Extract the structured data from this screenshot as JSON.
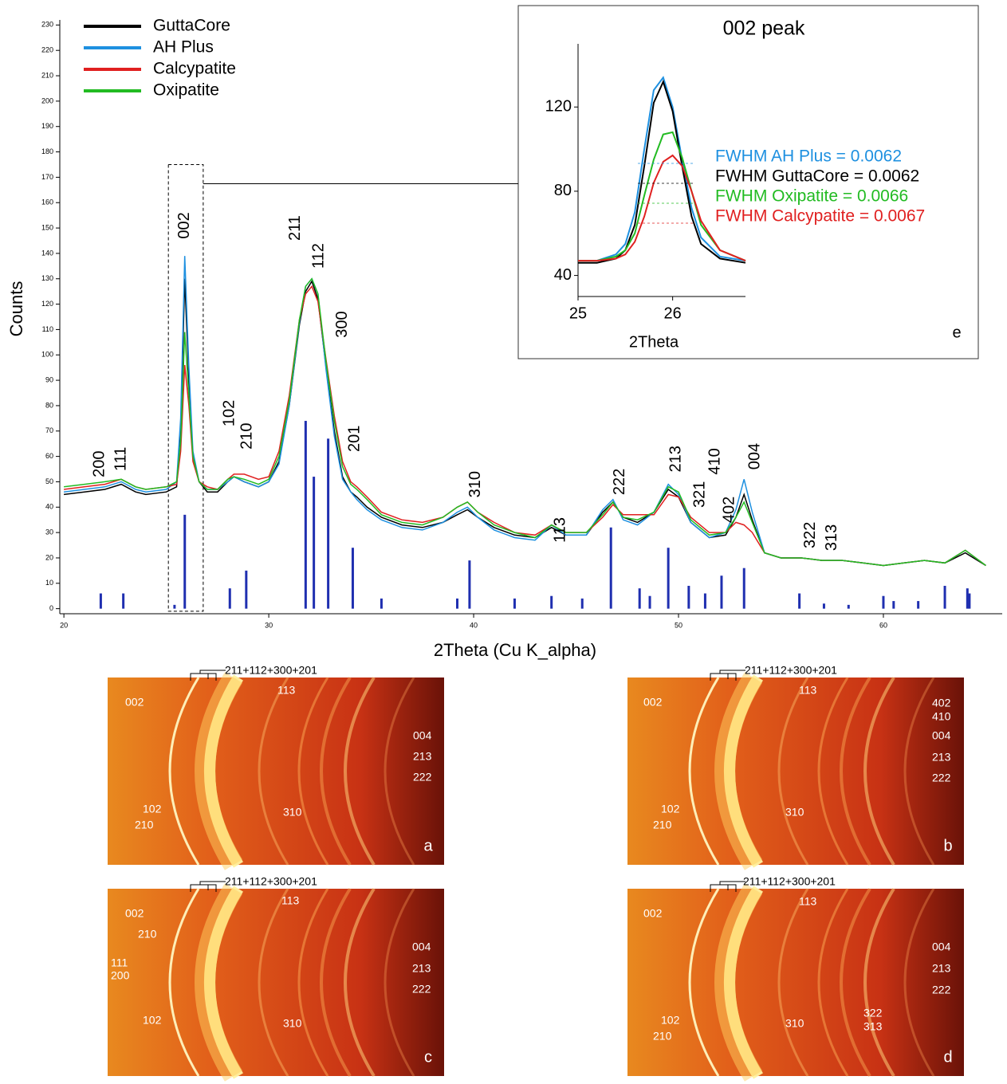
{
  "chart_data": [
    {
      "type": "line",
      "xlabel": "2Theta (Cu K_alpha)",
      "ylabel": "Counts",
      "xlim": [
        19.8,
        65.8
      ],
      "ylim": [
        -2,
        232
      ],
      "xticks": [
        20,
        30,
        40,
        50,
        60
      ],
      "yticks": [
        0,
        10,
        20,
        30,
        40,
        50,
        60,
        70,
        80,
        90,
        100,
        110,
        120,
        130,
        140,
        150,
        160,
        170,
        180,
        190,
        200,
        210,
        220,
        230
      ],
      "legend": "upper left",
      "x": [
        20,
        21,
        22,
        22.8,
        23.5,
        24,
        25,
        25.5,
        25.7,
        25.9,
        26.1,
        26.3,
        26.6,
        27,
        27.5,
        28,
        28.3,
        28.8,
        29.5,
        30,
        30.5,
        31,
        31.5,
        31.8,
        32.1,
        32.4,
        32.8,
        33.2,
        33.6,
        34,
        34.3,
        34.8,
        35.5,
        36.5,
        37.5,
        38.5,
        39.2,
        39.7,
        40.2,
        41,
        42,
        43,
        43.8,
        44.5,
        45.5,
        46.3,
        46.8,
        47.3,
        48,
        48.8,
        49.5,
        50,
        50.6,
        51.5,
        52.3,
        52.8,
        53.2,
        53.6,
        54.2,
        55,
        56,
        57,
        58,
        59,
        60,
        61,
        62,
        63,
        64,
        65
      ],
      "series": [
        {
          "name": "GuttaCore",
          "color": "#000000",
          "values": [
            45,
            46,
            47,
            49,
            46,
            45,
            46,
            48,
            70,
            130,
            90,
            60,
            50,
            46,
            46,
            50,
            52,
            50,
            48,
            50,
            58,
            80,
            112,
            125,
            129,
            122,
            95,
            70,
            52,
            46,
            44,
            40,
            36,
            33,
            32,
            34,
            37,
            39,
            36,
            32,
            29,
            28,
            32,
            29,
            29,
            38,
            42,
            36,
            34,
            38,
            47,
            44,
            34,
            28,
            29,
            36,
            45,
            35,
            22,
            20,
            20,
            19,
            19,
            18,
            17,
            18,
            19,
            18,
            22,
            17
          ]
        },
        {
          "name": "AH Plus",
          "color": "#1e90e0",
          "values": [
            46,
            47,
            48,
            50,
            47,
            46,
            47,
            50,
            75,
            139,
            95,
            62,
            50,
            47,
            47,
            50,
            52,
            50,
            48,
            50,
            57,
            80,
            113,
            127,
            130,
            124,
            94,
            68,
            51,
            46,
            43,
            39,
            35,
            32,
            31,
            34,
            38,
            40,
            36,
            31,
            28,
            27,
            33,
            29,
            29,
            39,
            43,
            35,
            33,
            38,
            49,
            45,
            34,
            28,
            30,
            39,
            51,
            38,
            22,
            20,
            20,
            19,
            19,
            18,
            17,
            18,
            19,
            18,
            23,
            17
          ]
        },
        {
          "name": "Calcypatite",
          "color": "#e02020",
          "values": [
            47,
            48,
            49,
            51,
            48,
            47,
            48,
            49,
            62,
            96,
            80,
            58,
            50,
            48,
            47,
            51,
            53,
            53,
            51,
            52,
            62,
            84,
            114,
            124,
            127,
            121,
            98,
            76,
            58,
            50,
            48,
            44,
            38,
            35,
            34,
            36,
            40,
            42,
            38,
            34,
            30,
            29,
            33,
            30,
            30,
            36,
            41,
            37,
            37,
            37,
            45,
            44,
            36,
            30,
            30,
            34,
            33,
            30,
            22,
            20,
            20,
            19,
            19,
            18,
            17,
            18,
            19,
            18,
            23,
            17
          ]
        },
        {
          "name": "Oxipatite",
          "color": "#22bb22",
          "values": [
            48,
            49,
            50,
            51,
            48,
            47,
            48,
            50,
            66,
            109,
            84,
            60,
            50,
            47,
            47,
            51,
            52,
            51,
            49,
            51,
            60,
            82,
            114,
            127,
            130,
            124,
            97,
            74,
            56,
            49,
            47,
            43,
            37,
            34,
            33,
            36,
            40,
            42,
            38,
            33,
            30,
            28,
            33,
            30,
            30,
            37,
            42,
            36,
            35,
            38,
            48,
            46,
            35,
            29,
            30,
            36,
            42,
            34,
            22,
            20,
            20,
            19,
            19,
            18,
            17,
            18,
            19,
            18,
            23,
            17
          ]
        }
      ],
      "reference_peaks": {
        "color": "#1f2fb0",
        "x": [
          21.8,
          22.9,
          25.4,
          25.9,
          28.1,
          28.9,
          31.8,
          32.2,
          32.9,
          34.1,
          35.5,
          39.2,
          39.8,
          42.0,
          43.8,
          45.3,
          46.7,
          48.1,
          48.6,
          49.5,
          50.5,
          51.3,
          52.1,
          53.2,
          55.9,
          57.1,
          58.3,
          60.0,
          60.5,
          61.7,
          63.0,
          64.1,
          64.2
        ],
        "values": [
          6,
          6,
          1.5,
          37,
          8,
          15,
          74,
          52,
          67,
          24,
          4,
          4,
          19,
          4,
          5,
          4,
          32,
          8,
          5,
          24,
          9,
          6,
          13,
          16,
          6,
          2,
          1.5,
          5,
          3,
          3,
          9,
          8,
          6
        ]
      },
      "zoom_box": {
        "xlim": [
          25.1,
          26.8
        ],
        "ylim": [
          -1,
          175
        ]
      },
      "annotations": [
        {
          "text": "200",
          "x": 21.75,
          "y": 57
        },
        {
          "text": "111",
          "x": 22.8,
          "y": 59
        },
        {
          "text": "002",
          "x": 25.9,
          "y": 151
        },
        {
          "text": "102",
          "x": 28.1,
          "y": 77
        },
        {
          "text": "210",
          "x": 28.95,
          "y": 68
        },
        {
          "text": "211",
          "x": 31.3,
          "y": 150
        },
        {
          "text": "112",
          "x": 32.45,
          "y": 139
        },
        {
          "text": "300",
          "x": 33.6,
          "y": 112
        },
        {
          "text": "201",
          "x": 34.2,
          "y": 67
        },
        {
          "text": "310",
          "x": 40.1,
          "y": 49
        },
        {
          "text": "113",
          "x": 44.25,
          "y": 31
        },
        {
          "text": "222",
          "x": 47.15,
          "y": 50
        },
        {
          "text": "213",
          "x": 49.9,
          "y": 59
        },
        {
          "text": "321",
          "x": 51.05,
          "y": 45
        },
        {
          "text": "410",
          "x": 51.8,
          "y": 58
        },
        {
          "text": "402",
          "x": 52.5,
          "y": 39
        },
        {
          "text": "004",
          "x": 53.75,
          "y": 60
        },
        {
          "text": "322",
          "x": 56.45,
          "y": 29
        },
        {
          "text": "313",
          "x": 57.5,
          "y": 28
        }
      ]
    },
    {
      "type": "line",
      "title": "002 peak",
      "xlabel": "2Theta",
      "panel": "e",
      "xlim": [
        25,
        26.77
      ],
      "ylim": [
        30,
        150
      ],
      "xticks": [
        25,
        26
      ],
      "yticks": [
        40,
        80,
        120
      ],
      "x": [
        25,
        25.2,
        25.4,
        25.5,
        25.6,
        25.7,
        25.8,
        25.9,
        26.0,
        26.1,
        26.2,
        26.3,
        26.5,
        26.77
      ],
      "series": [
        {
          "name": "AH Plus",
          "color": "#1e90e0",
          "values": [
            47,
            47,
            50,
            55,
            70,
            100,
            128,
            134,
            120,
            95,
            72,
            58,
            49,
            47
          ]
        },
        {
          "name": "GuttaCore",
          "color": "#000000",
          "values": [
            46,
            46,
            48,
            52,
            64,
            92,
            122,
            132,
            118,
            92,
            68,
            55,
            48,
            46
          ]
        },
        {
          "name": "Oxipatite",
          "color": "#22bb22",
          "values": [
            47,
            47,
            49,
            52,
            60,
            78,
            95,
            107,
            108,
            96,
            80,
            64,
            52,
            47
          ]
        },
        {
          "name": "Calcypatite",
          "color": "#e02020",
          "values": [
            47,
            47,
            48,
            50,
            56,
            68,
            84,
            94,
            97,
            92,
            80,
            66,
            52,
            47
          ]
        }
      ],
      "annotations": [
        {
          "text": "FWHM AH Plus = 0.0062",
          "color": "#1e90e0"
        },
        {
          "text": "FWHM GuttaCore = 0.0062",
          "color": "#000000"
        },
        {
          "text": "FWHM Oxipatite = 0.0066",
          "color": "#22bb22"
        },
        {
          "text": "FWHM Calcypatite = 0.0067",
          "color": "#e02020"
        }
      ]
    }
  ],
  "diffraction_panels": [
    {
      "letter": "a",
      "labels": [
        "211+112+300+201",
        "002",
        "113",
        "004",
        "213",
        "222",
        "102",
        "210",
        "310"
      ]
    },
    {
      "letter": "b",
      "labels": [
        "211+112+300+201",
        "002",
        "113",
        "402",
        "410",
        "004",
        "213",
        "222",
        "102",
        "210",
        "310"
      ]
    },
    {
      "letter": "c",
      "labels": [
        "211+112+300+201",
        "113",
        "002",
        "210",
        "004",
        "111",
        "200",
        "213",
        "222",
        "102",
        "310"
      ]
    },
    {
      "letter": "d",
      "labels": [
        "211+112+300+201",
        "113",
        "002",
        "004",
        "213",
        "222",
        "102",
        "322",
        "210",
        "313",
        "310"
      ]
    }
  ]
}
